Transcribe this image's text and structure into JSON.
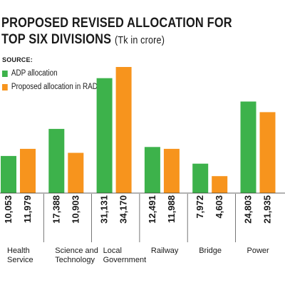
{
  "chart_data": {
    "type": "bar",
    "title_line1": "PROPOSED REVISED ALLOCATION FOR",
    "title_line2": "TOP SIX DIVISIONS",
    "title_unit": "(Tk in crore)",
    "source_label": "SOURCE:",
    "categories": [
      [
        "Health",
        "Service"
      ],
      [
        "Science and",
        "Technology"
      ],
      [
        "Local",
        "Government"
      ],
      [
        "Railway"
      ],
      [
        "Bridge"
      ],
      [
        "Power"
      ]
    ],
    "series": [
      {
        "name": "ADP allocation",
        "color": "#3db24b",
        "values": [
          10053,
          17388,
          31131,
          12491,
          7972,
          24803
        ]
      },
      {
        "name": "Proposed allocation in RADP",
        "color": "#f7941d",
        "values": [
          11979,
          10903,
          34170,
          11988,
          4603,
          21935
        ]
      }
    ],
    "value_labels": [
      [
        "10,053",
        "11,979"
      ],
      [
        "17,388",
        "10,903"
      ],
      [
        "31,131",
        "34,170"
      ],
      [
        "12,491",
        "11,988"
      ],
      [
        "7,972",
        "4,603"
      ],
      [
        "24,803",
        "21,935"
      ]
    ],
    "ylim": [
      0,
      35000
    ],
    "grid": false,
    "legend": "top-left"
  }
}
